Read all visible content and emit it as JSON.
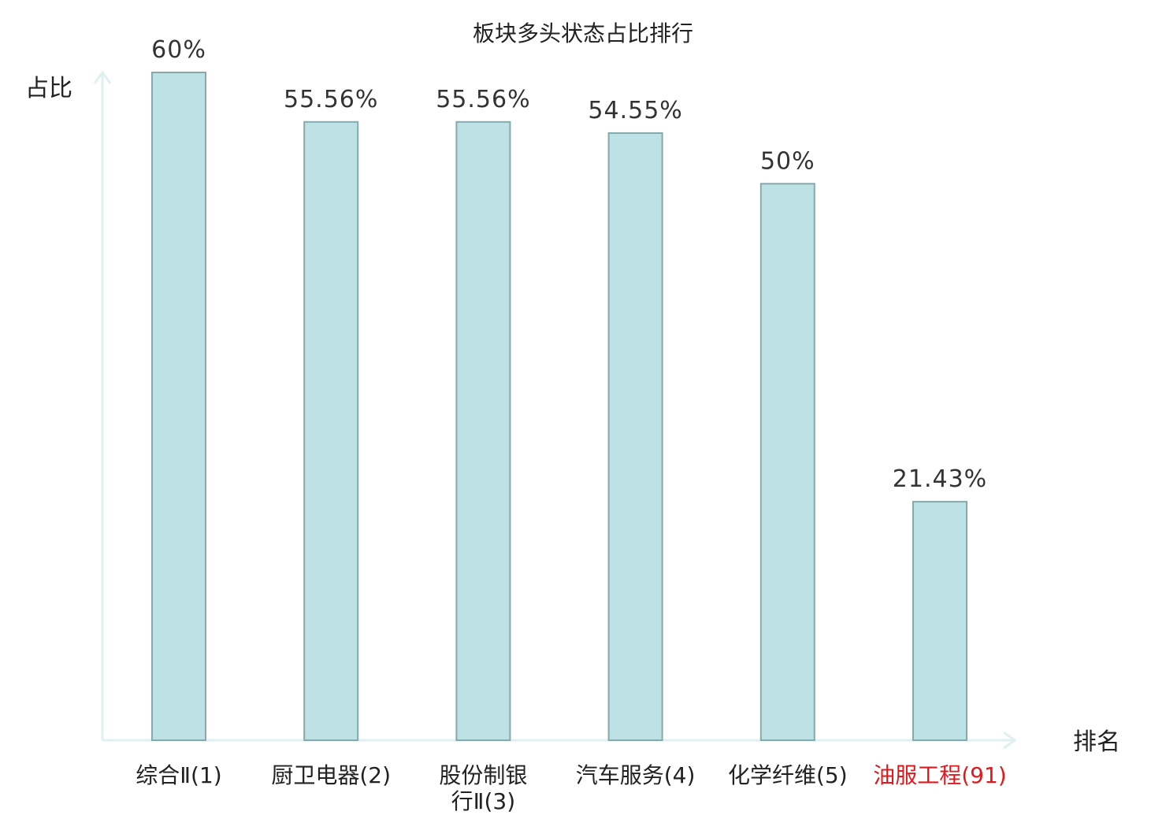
{
  "chart_data": {
    "type": "bar",
    "title": "板块多头状态占比排行",
    "ylabel": "占比",
    "xlabel": "排名",
    "ylim": [
      0,
      60
    ],
    "grid": false,
    "categories": [
      [
        "综合Ⅱ(1)"
      ],
      [
        "厨卫电器(2)"
      ],
      [
        "股份制银",
        "行Ⅱ(3)"
      ],
      [
        "汽车服务(4)"
      ],
      [
        "化学纤维(5)"
      ],
      [
        "油服工程(91)"
      ]
    ],
    "values": [
      60,
      55.56,
      55.56,
      54.55,
      50,
      21.43
    ],
    "value_labels": [
      "60%",
      "55.56%",
      "55.56%",
      "54.55%",
      "50%",
      "21.43%"
    ],
    "highlight_index": 5,
    "colors": {
      "bar_fill": "#bde1e4",
      "bar_stroke": "#86a9ab",
      "axis": "#dff1ef",
      "highlight_text": "#e0191e"
    }
  }
}
